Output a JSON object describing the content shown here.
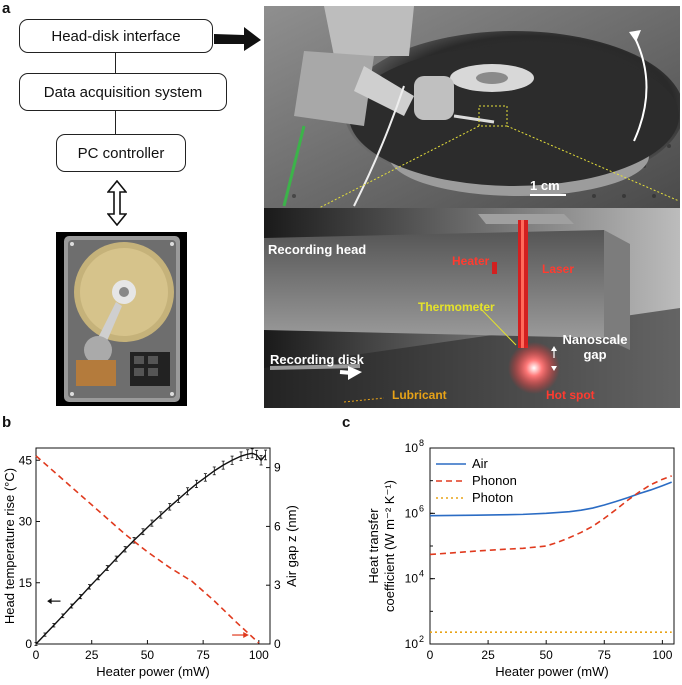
{
  "panel_a": {
    "letter": "a",
    "flowchart": {
      "box1": "Head-disk interface",
      "box2": "Data acquisition system",
      "box3": "PC controller"
    },
    "photo": {
      "scale_bar": "1 cm"
    },
    "schematic": {
      "recording_head": "Recording head",
      "heater": "Heater",
      "laser": "Laser",
      "thermometer": "Thermometer",
      "nanoscale_gap": "Nanoscale gap",
      "recording_disk": "Recording disk",
      "lubricant": "Lubricant",
      "hot_spot": "Hot spot"
    }
  },
  "panel_b": {
    "letter": "b"
  },
  "panel_c": {
    "letter": "c"
  },
  "colors": {
    "air": "#2b6cc4",
    "phonon": "#e03a1e",
    "photon": "#e8a317",
    "heater_label": "#ff3b30",
    "thermo_label": "#e5e32a",
    "lube_label": "#e8a317"
  },
  "chart_data": [
    {
      "type": "line",
      "panel": "b",
      "xlabel": "Heater power (mW)",
      "ylabel": "Head temperature rise (°C)",
      "y2label": "Air gap z (nm)",
      "xlim": [
        0,
        105
      ],
      "ylim": [
        0,
        48
      ],
      "y2lim": [
        0,
        10
      ],
      "xticks": [
        "0",
        "25",
        "50",
        "75",
        "100"
      ],
      "yticks": [
        "0",
        "15",
        "30",
        "45"
      ],
      "y2ticks": [
        "0",
        "3",
        "6",
        "9"
      ],
      "series": [
        {
          "name": "Head temperature rise",
          "axis": "left",
          "style": "solid-errorbars",
          "color": "#111111",
          "x": [
            0,
            4,
            8,
            12,
            16,
            20,
            24,
            28,
            32,
            36,
            40,
            44,
            48,
            52,
            56,
            60,
            64,
            68,
            72,
            76,
            80,
            84,
            88,
            92,
            95,
            97,
            99,
            101,
            103
          ],
          "y": [
            0,
            2.3,
            4.6,
            6.9,
            9.3,
            11.6,
            14.0,
            16.3,
            18.6,
            20.9,
            23.2,
            25.4,
            27.5,
            29.6,
            31.6,
            33.6,
            35.5,
            37.4,
            39.2,
            40.8,
            42.4,
            43.8,
            45.0,
            46.0,
            46.5,
            46.7,
            46.3,
            45.0,
            46.3
          ]
        },
        {
          "name": "Air gap z",
          "axis": "right",
          "style": "dashed",
          "color": "#e03a1e",
          "x": [
            0,
            10,
            20,
            30,
            40,
            50,
            60,
            70,
            80,
            90,
            100
          ],
          "y": [
            9.6,
            8.6,
            7.6,
            6.6,
            5.6,
            4.7,
            3.9,
            3.2,
            2.2,
            1.1,
            0.05
          ]
        }
      ]
    },
    {
      "type": "line",
      "panel": "c",
      "xlabel": "Heater power (mW)",
      "ylabel": "Heat transfer coefficient (W m⁻² K⁻¹)",
      "yscale": "log",
      "xlim": [
        0,
        105
      ],
      "ylim": [
        100,
        100000000
      ],
      "xticks": [
        "0",
        "25",
        "50",
        "75",
        "100"
      ],
      "ytick_values": [
        100,
        10000,
        1000000,
        100000000
      ],
      "ytick_exponents": [
        "2",
        "4",
        "6",
        "8"
      ],
      "legend_location": "top-left",
      "series": [
        {
          "name": "Air",
          "style": "solid",
          "color": "#2b6cc4",
          "x": [
            0,
            10,
            20,
            30,
            40,
            50,
            60,
            65,
            70,
            75,
            80,
            85,
            90,
            95,
            100,
            104
          ],
          "y": [
            850000,
            860000,
            880000,
            900000,
            930000,
            1000000,
            1120000,
            1250000,
            1450000,
            1800000,
            2300000,
            3000000,
            4000000,
            5200000,
            7000000,
            9000000
          ]
        },
        {
          "name": "Phonon",
          "style": "dashed",
          "color": "#e03a1e",
          "x": [
            0,
            10,
            20,
            30,
            40,
            50,
            55,
            60,
            65,
            70,
            75,
            80,
            85,
            90,
            95,
            100,
            104
          ],
          "y": [
            55000,
            62000,
            70000,
            78000,
            85000,
            100000,
            130000,
            180000,
            260000,
            400000,
            700000,
            1300000,
            2500000,
            4500000,
            7500000,
            11000000,
            14000000
          ]
        },
        {
          "name": "Photon",
          "style": "dotted",
          "color": "#e8a317",
          "x": [
            0,
            104
          ],
          "y": [
            230,
            230
          ]
        }
      ]
    }
  ]
}
